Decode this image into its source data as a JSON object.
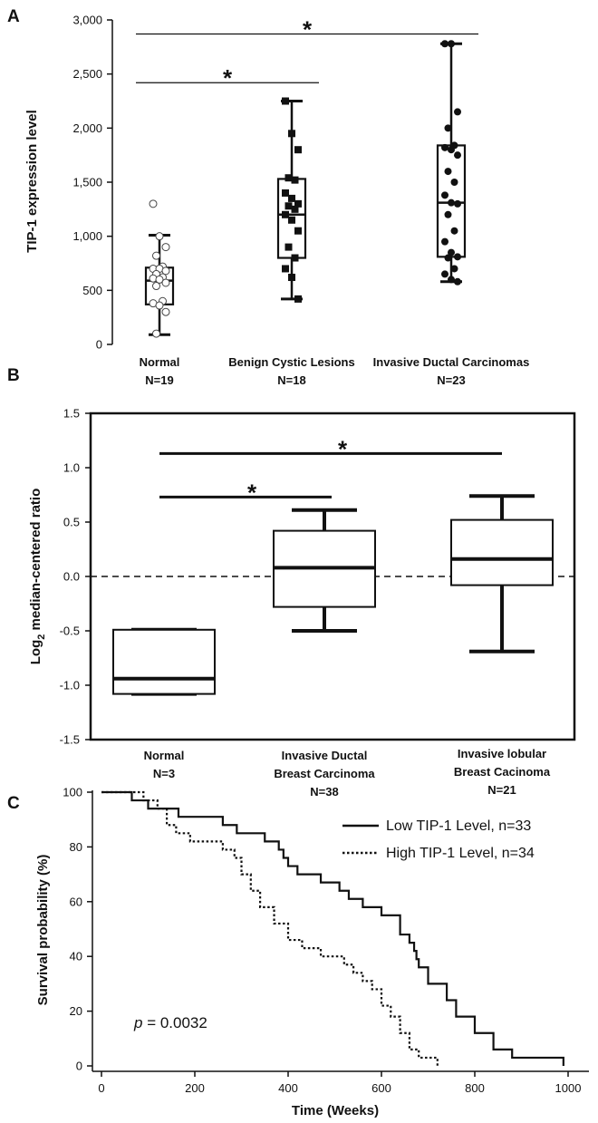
{
  "colors": {
    "ink": "#111111",
    "background": "#ffffff"
  },
  "chart_data": [
    {
      "panel": "A",
      "type": "box",
      "ylabel": "TIP-1 expression level",
      "ylim": [
        0,
        3000
      ],
      "yticks": [
        0,
        500,
        1000,
        1500,
        2000,
        2500,
        3000
      ],
      "ytick_labels": [
        "0",
        "500",
        "1,000",
        "1,500",
        "2,000",
        "2,500",
        "3,000"
      ],
      "groups": [
        {
          "name": "Normal",
          "n_label": "N=19",
          "marker": "open-circle",
          "whisker_low": 90,
          "q1": 370,
          "median": 590,
          "q3": 710,
          "whisker_high": 1010,
          "points": [
            1300,
            1000,
            900,
            820,
            720,
            700,
            700,
            680,
            650,
            620,
            610,
            600,
            570,
            540,
            400,
            380,
            360,
            300,
            100
          ]
        },
        {
          "name": "Benign Cystic Lesions",
          "n_label": "N=18",
          "marker": "filled-square",
          "whisker_low": 420,
          "q1": 800,
          "median": 1200,
          "q3": 1530,
          "whisker_high": 2250,
          "points": [
            2250,
            1950,
            1800,
            1540,
            1520,
            1400,
            1350,
            1300,
            1280,
            1250,
            1200,
            1150,
            1050,
            900,
            800,
            700,
            620,
            420
          ]
        },
        {
          "name": "Invasive Ductal Carcinomas",
          "n_label": "N=23",
          "marker": "filled-circle",
          "whisker_low": 580,
          "q1": 810,
          "median": 1310,
          "q3": 1840,
          "whisker_high": 2780,
          "points": [
            2780,
            2780,
            2150,
            2000,
            1840,
            1820,
            1800,
            1750,
            1600,
            1500,
            1380,
            1310,
            1300,
            1200,
            1050,
            950,
            850,
            810,
            800,
            700,
            650,
            600,
            580
          ]
        }
      ],
      "annotations": [
        {
          "from": 0,
          "to": 1,
          "y": 2420,
          "label": "*"
        },
        {
          "from": 0,
          "to": 2,
          "y": 2870,
          "label": "*"
        }
      ]
    },
    {
      "panel": "B",
      "type": "box",
      "ylabel": "Log",
      "ylabel_sub": "2",
      "ylabel_rest": " median-centered ratio",
      "ylim": [
        -1.5,
        1.5
      ],
      "yticks": [
        -1.5,
        -1.0,
        -0.5,
        0.0,
        0.5,
        1.0,
        1.5
      ],
      "ytick_labels": [
        "-1.5",
        "-1.0",
        "-0.5",
        "0.0",
        "0.5",
        "1.0",
        "1.5"
      ],
      "reference_line": 0.0,
      "groups": [
        {
          "name": "Normal",
          "name2": "",
          "n_label": "N=3",
          "whisker_low": -1.08,
          "q1": -1.08,
          "median": -0.94,
          "q3": -0.49,
          "whisker_high": -0.49
        },
        {
          "name": "Invasive Ductal",
          "name2": "Breast Carcinoma",
          "n_label": "N=38",
          "whisker_low": -0.5,
          "q1": -0.28,
          "median": 0.08,
          "q3": 0.42,
          "whisker_high": 0.61
        },
        {
          "name": "Invasive lobular",
          "name2": "Breast Cacinoma",
          "n_label": "N=21",
          "whisker_low": -0.69,
          "q1": -0.08,
          "median": 0.16,
          "q3": 0.52,
          "whisker_high": 0.74
        }
      ],
      "annotations": [
        {
          "from": 0,
          "to": 1,
          "y": 0.73,
          "label": "*"
        },
        {
          "from": 0,
          "to": 2,
          "y": 1.13,
          "label": "*"
        }
      ]
    },
    {
      "panel": "C",
      "type": "line",
      "xlabel": "Time (Weeks)",
      "ylabel": "Survival probability (%)",
      "xlim": [
        0,
        1050
      ],
      "ylim": [
        0,
        100
      ],
      "xticks": [
        0,
        200,
        400,
        600,
        800,
        1000
      ],
      "yticks": [
        0,
        20,
        40,
        60,
        80,
        100
      ],
      "annotation": {
        "prefix": "p",
        "text": " = 0.0032"
      },
      "series": [
        {
          "name": "Low TIP-1 Level, n=33",
          "style": "solid",
          "steps": [
            [
              0,
              100
            ],
            [
              65,
              97
            ],
            [
              100,
              94
            ],
            [
              165,
              91
            ],
            [
              260,
              88
            ],
            [
              290,
              85
            ],
            [
              350,
              82
            ],
            [
              380,
              79
            ],
            [
              390,
              76
            ],
            [
              400,
              73
            ],
            [
              420,
              70
            ],
            [
              470,
              67
            ],
            [
              510,
              64
            ],
            [
              530,
              61
            ],
            [
              560,
              58
            ],
            [
              600,
              55
            ],
            [
              640,
              52
            ],
            [
              640,
              48
            ],
            [
              660,
              45
            ],
            [
              670,
              42
            ],
            [
              675,
              39
            ],
            [
              680,
              36
            ],
            [
              700,
              30
            ],
            [
              740,
              24
            ],
            [
              760,
              18
            ],
            [
              800,
              12
            ],
            [
              840,
              6
            ],
            [
              880,
              3
            ],
            [
              990,
              3
            ],
            [
              990,
              0
            ]
          ]
        },
        {
          "name": "High TIP-1 Level, n=34",
          "style": "dotted",
          "steps": [
            [
              0,
              100
            ],
            [
              90,
              97
            ],
            [
              120,
              94
            ],
            [
              140,
              88
            ],
            [
              160,
              85
            ],
            [
              190,
              82
            ],
            [
              260,
              79
            ],
            [
              285,
              76
            ],
            [
              300,
              70
            ],
            [
              320,
              64
            ],
            [
              340,
              58
            ],
            [
              370,
              52
            ],
            [
              400,
              46
            ],
            [
              430,
              43
            ],
            [
              470,
              40
            ],
            [
              520,
              37
            ],
            [
              540,
              34
            ],
            [
              560,
              31
            ],
            [
              580,
              28
            ],
            [
              600,
              22
            ],
            [
              620,
              18
            ],
            [
              640,
              12
            ],
            [
              660,
              6
            ],
            [
              680,
              3
            ],
            [
              720,
              3
            ],
            [
              720,
              0
            ]
          ]
        }
      ]
    }
  ]
}
